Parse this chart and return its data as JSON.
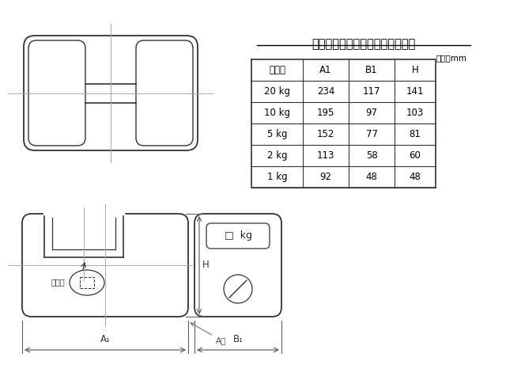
{
  "title": "ステンレス製枕型分銅の主要寸法",
  "unit_label": "単位　mm",
  "table_headers": [
    "表す量",
    "A1",
    "B1",
    "H"
  ],
  "table_data": [
    [
      "20 kg",
      "234",
      "117",
      "141"
    ],
    [
      "10 kg",
      "195",
      "97",
      "103"
    ],
    [
      "5 kg",
      "152",
      "77",
      "81"
    ],
    [
      "2 kg",
      "113",
      "58",
      "60"
    ],
    [
      "1 kg",
      "92",
      "48",
      "48"
    ]
  ],
  "bg_color": "#ffffff",
  "line_color": "#333333",
  "dim_line_color": "#555555",
  "centerline_color": "#aaaaaa"
}
